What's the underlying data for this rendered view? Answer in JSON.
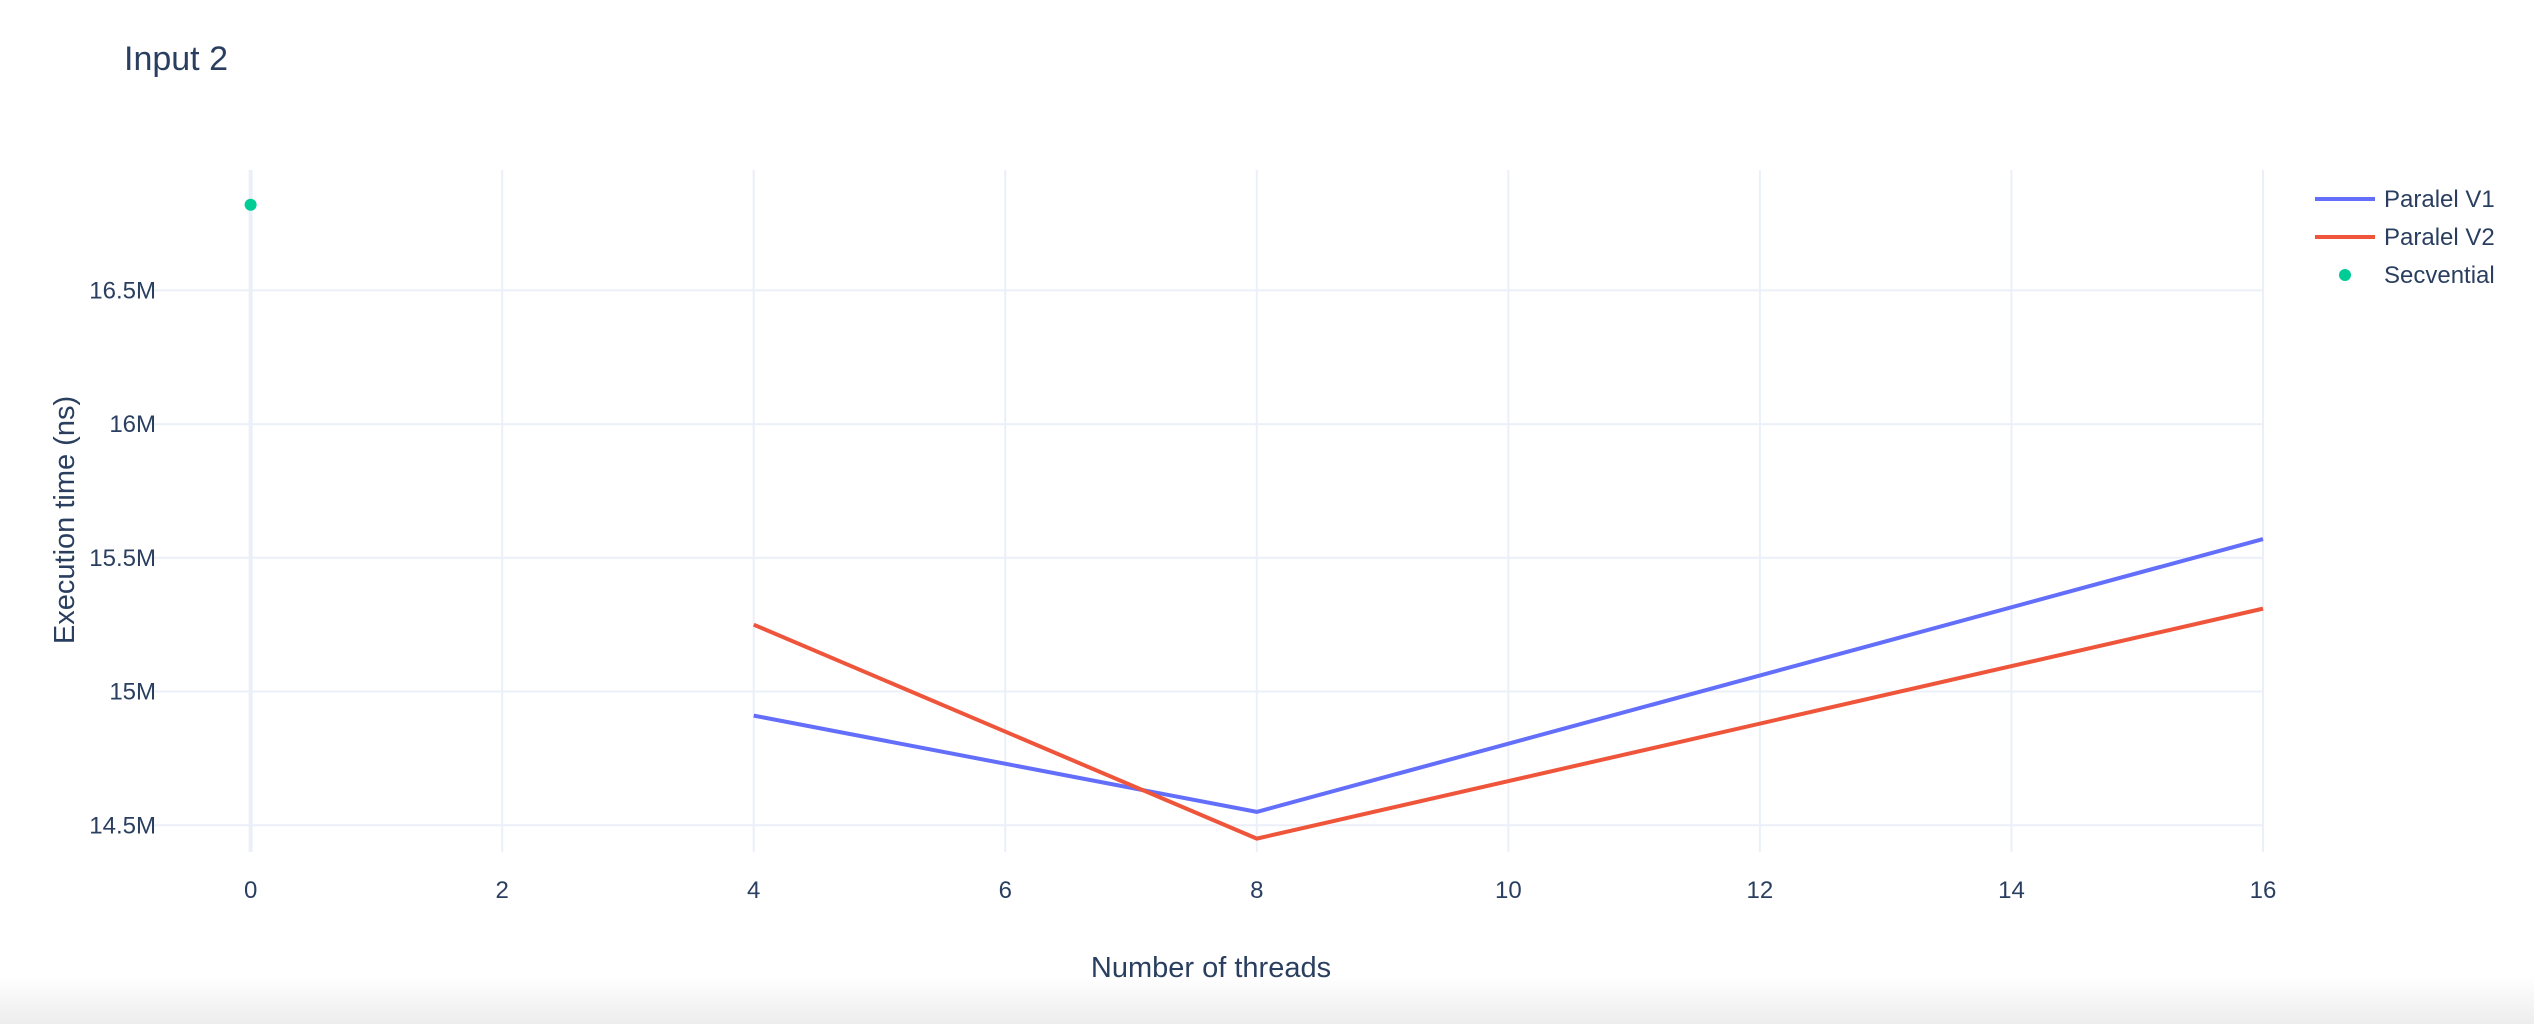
{
  "chart_data": {
    "type": "line",
    "title": "Input 2",
    "xlabel": "Number of threads",
    "ylabel": "Execution time (ns)",
    "xlim": [
      -0.8,
      16
    ],
    "ylim": [
      14.4,
      16.95
    ],
    "x_ticks": [
      0,
      2,
      4,
      6,
      8,
      10,
      12,
      14,
      16
    ],
    "y_ticks": [
      14.5,
      15,
      15.5,
      16,
      16.5
    ],
    "y_tick_labels": [
      "14.5M",
      "15M",
      "15.5M",
      "16M",
      "16.5M"
    ],
    "grid": true,
    "legend_position": "top-right",
    "series": [
      {
        "name": "Paralel V1",
        "mode": "lines",
        "color": "#636efa",
        "x": [
          4,
          8,
          16
        ],
        "y": [
          14.91,
          14.55,
          15.57
        ]
      },
      {
        "name": "Paralel V2",
        "mode": "lines",
        "color": "#ef553b",
        "x": [
          4,
          8,
          16
        ],
        "y": [
          15.25,
          14.45,
          15.31
        ]
      },
      {
        "name": "Secvential",
        "mode": "markers",
        "color": "#00cc96",
        "x": [
          0
        ],
        "y": [
          16.82
        ]
      }
    ]
  }
}
